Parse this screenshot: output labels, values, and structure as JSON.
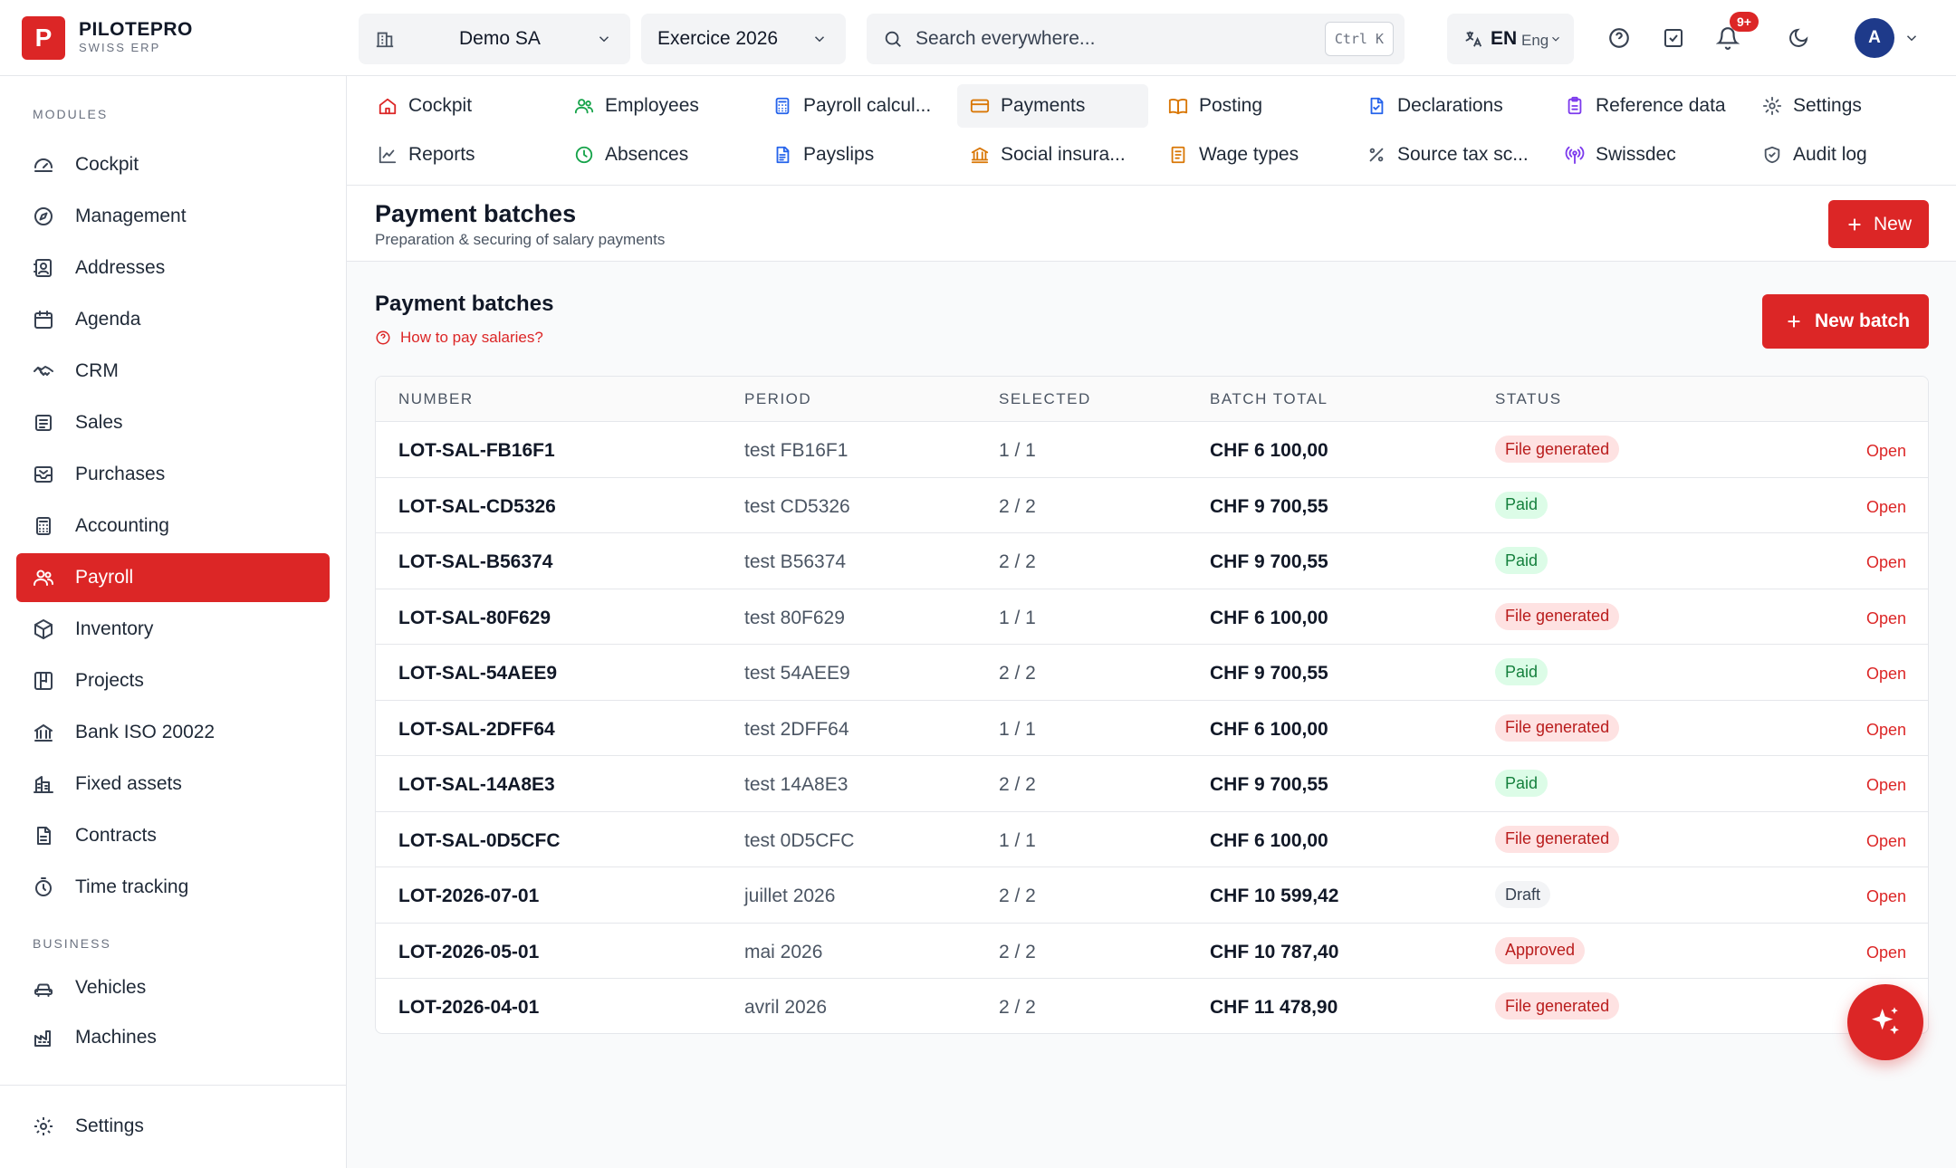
{
  "brand": {
    "logo_letter": "P",
    "name": "PILOTEPRO",
    "subtitle": "SWISS ERP"
  },
  "header": {
    "company": "Demo SA",
    "fiscal_year": "Exercice 2026",
    "search_placeholder": "Search everywhere...",
    "search_shortcut": "Ctrl K",
    "language_code": "EN",
    "language_name": "Eng",
    "notifications_badge": "9+",
    "avatar_initial": "A"
  },
  "sidebar": {
    "modules_label": "MODULES",
    "business_label": "BUSINESS",
    "modules": [
      {
        "label": "Cockpit",
        "icon": "gauge-icon"
      },
      {
        "label": "Management",
        "icon": "compass-icon"
      },
      {
        "label": "Addresses",
        "icon": "contact-icon"
      },
      {
        "label": "Agenda",
        "icon": "calendar-icon"
      },
      {
        "label": "CRM",
        "icon": "handshake-icon"
      },
      {
        "label": "Sales",
        "icon": "receipt-icon"
      },
      {
        "label": "Purchases",
        "icon": "inbox-icon"
      },
      {
        "label": "Accounting",
        "icon": "calculator-icon"
      },
      {
        "label": "Payroll",
        "icon": "users-icon",
        "active": true
      },
      {
        "label": "Inventory",
        "icon": "package-icon"
      },
      {
        "label": "Projects",
        "icon": "kanban-icon"
      },
      {
        "label": "Bank ISO 20022",
        "icon": "bank-icon"
      },
      {
        "label": "Fixed assets",
        "icon": "building-icon"
      },
      {
        "label": "Contracts",
        "icon": "document-icon"
      },
      {
        "label": "Time tracking",
        "icon": "timer-icon"
      }
    ],
    "business": [
      {
        "label": "Vehicles",
        "icon": "car-icon"
      },
      {
        "label": "Machines",
        "icon": "factory-icon"
      }
    ],
    "settings_label": "Settings"
  },
  "module_tabs": [
    {
      "label": "Cockpit",
      "icon": "home-icon",
      "color": "#dc2626"
    },
    {
      "label": "Employees",
      "icon": "users-icon",
      "color": "#16a34a"
    },
    {
      "label": "Payroll calcul...",
      "icon": "calculator-icon",
      "color": "#2563eb"
    },
    {
      "label": "Payments",
      "icon": "credit-card-icon",
      "color": "#d97706",
      "active": true
    },
    {
      "label": "Posting",
      "icon": "book-icon",
      "color": "#d97706"
    },
    {
      "label": "Declarations",
      "icon": "file-check-icon",
      "color": "#2563eb"
    },
    {
      "label": "Reference data",
      "icon": "clipboard-icon",
      "color": "#7c3aed"
    },
    {
      "label": "Settings",
      "icon": "gear-icon",
      "color": "#4b5563"
    },
    {
      "label": "Reports",
      "icon": "line-chart-icon",
      "color": "#4b5563"
    },
    {
      "label": "Absences",
      "icon": "clock-icon",
      "color": "#16a34a"
    },
    {
      "label": "Payslips",
      "icon": "file-text-icon",
      "color": "#2563eb"
    },
    {
      "label": "Social insura...",
      "icon": "landmark-icon",
      "color": "#d97706"
    },
    {
      "label": "Wage types",
      "icon": "list-icon",
      "color": "#d97706"
    },
    {
      "label": "Source tax sc...",
      "icon": "percent-icon",
      "color": "#4b5563"
    },
    {
      "label": "Swissdec",
      "icon": "radio-icon",
      "color": "#7c3aed"
    },
    {
      "label": "Audit log",
      "icon": "shield-icon",
      "color": "#4b5563"
    }
  ],
  "page": {
    "title": "Payment batches",
    "subtitle": "Preparation & securing of salary payments",
    "new_button": "New"
  },
  "content": {
    "section_title": "Payment batches",
    "help_link": "How to pay salaries?",
    "new_batch_button": "New batch"
  },
  "table": {
    "columns": [
      "NUMBER",
      "PERIOD",
      "SELECTED",
      "BATCH TOTAL",
      "STATUS"
    ],
    "open_label": "Open",
    "rows": [
      {
        "number": "LOT-SAL-FB16F1",
        "period": "test FB16F1",
        "selected": "1 / 1",
        "total": "CHF 6 100,00",
        "status": "File generated",
        "status_kind": "file"
      },
      {
        "number": "LOT-SAL-CD5326",
        "period": "test CD5326",
        "selected": "2 / 2",
        "total": "CHF 9 700,55",
        "status": "Paid",
        "status_kind": "paid"
      },
      {
        "number": "LOT-SAL-B56374",
        "period": "test B56374",
        "selected": "2 / 2",
        "total": "CHF 9 700,55",
        "status": "Paid",
        "status_kind": "paid"
      },
      {
        "number": "LOT-SAL-80F629",
        "period": "test 80F629",
        "selected": "1 / 1",
        "total": "CHF 6 100,00",
        "status": "File generated",
        "status_kind": "file"
      },
      {
        "number": "LOT-SAL-54AEE9",
        "period": "test 54AEE9",
        "selected": "2 / 2",
        "total": "CHF 9 700,55",
        "status": "Paid",
        "status_kind": "paid"
      },
      {
        "number": "LOT-SAL-2DFF64",
        "period": "test 2DFF64",
        "selected": "1 / 1",
        "total": "CHF 6 100,00",
        "status": "File generated",
        "status_kind": "file"
      },
      {
        "number": "LOT-SAL-14A8E3",
        "period": "test 14A8E3",
        "selected": "2 / 2",
        "total": "CHF 9 700,55",
        "status": "Paid",
        "status_kind": "paid"
      },
      {
        "number": "LOT-SAL-0D5CFC",
        "period": "test 0D5CFC",
        "selected": "1 / 1",
        "total": "CHF 6 100,00",
        "status": "File generated",
        "status_kind": "file"
      },
      {
        "number": "LOT-2026-07-01",
        "period": "juillet 2026",
        "selected": "2 / 2",
        "total": "CHF 10 599,42",
        "status": "Draft",
        "status_kind": "draft"
      },
      {
        "number": "LOT-2026-05-01",
        "period": "mai 2026",
        "selected": "2 / 2",
        "total": "CHF 10 787,40",
        "status": "Approved",
        "status_kind": "approved"
      },
      {
        "number": "LOT-2026-04-01",
        "period": "avril 2026",
        "selected": "2 / 2",
        "total": "CHF 11 478,90",
        "status": "File generated",
        "status_kind": "file"
      }
    ]
  },
  "colors": {
    "accent": "#dc2626",
    "paid": "#15803d",
    "file_generated": "#b91c1c"
  }
}
